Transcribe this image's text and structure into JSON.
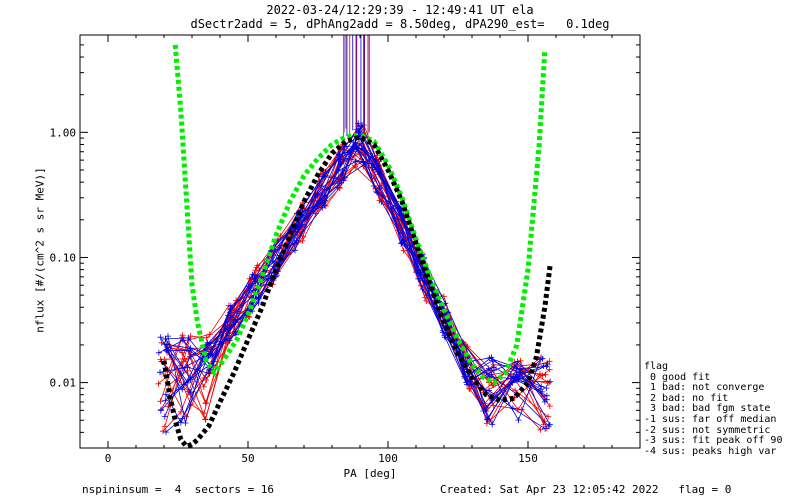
{
  "chart_data": {
    "type": "line",
    "title": "2022-03-24/12:29:39 - 12:49:41 UT ela",
    "subtitle": "dSectr2add = 5, dPhAng2add = 8.50deg, dPA290_est=   0.1deg",
    "xlabel": "PA [deg]",
    "ylabel": "nflux [#/(cm^2 s sr MeV)]",
    "xlim": [
      -10,
      190
    ],
    "ylim": [
      0.003,
      6.0
    ],
    "yscale": "log",
    "xticks": [
      0,
      50,
      100,
      150
    ],
    "yticks": [
      {
        "value": 0.01,
        "label": "0.01"
      },
      {
        "value": 0.1,
        "label": "0.10"
      },
      {
        "value": 1.0,
        "label": "1.00"
      }
    ],
    "series": [
      {
        "color": "#00ee00",
        "style": "thick-dotted",
        "x": [
          24,
          26,
          28,
          30,
          32,
          35,
          38,
          42,
          46,
          50,
          55,
          60,
          65,
          70,
          75,
          80,
          85,
          90,
          95,
          100,
          105,
          110,
          115,
          120,
          125,
          130,
          134,
          138,
          142,
          146,
          150,
          154,
          156
        ],
        "values": [
          5.0,
          1.5,
          0.3,
          0.06,
          0.03,
          0.015,
          0.012,
          0.016,
          0.022,
          0.035,
          0.07,
          0.15,
          0.28,
          0.45,
          0.62,
          0.8,
          0.92,
          0.95,
          0.85,
          0.55,
          0.3,
          0.14,
          0.07,
          0.038,
          0.022,
          0.014,
          0.011,
          0.01,
          0.012,
          0.02,
          0.08,
          0.8,
          4.5
        ]
      },
      {
        "color": "#000000",
        "style": "thick-dotted",
        "x": [
          20,
          22,
          24,
          26,
          28,
          30,
          32,
          36,
          40,
          45,
          50,
          55,
          60,
          65,
          70,
          75,
          80,
          85,
          90,
          95,
          100,
          105,
          110,
          115,
          120,
          125,
          130,
          135,
          140,
          145,
          150,
          153,
          156,
          158
        ],
        "values": [
          0.015,
          0.008,
          0.005,
          0.0035,
          0.0031,
          0.0032,
          0.0035,
          0.0045,
          0.007,
          0.012,
          0.022,
          0.04,
          0.08,
          0.15,
          0.28,
          0.46,
          0.68,
          0.85,
          0.92,
          0.8,
          0.5,
          0.28,
          0.13,
          0.06,
          0.03,
          0.017,
          0.011,
          0.008,
          0.0072,
          0.0075,
          0.01,
          0.016,
          0.04,
          0.09
        ]
      }
    ]
  },
  "legend": {
    "title": "flag",
    "items": [
      " 0 good fit",
      " 1 bad: not converge",
      " 2 bad: no fit",
      " 3 bad: bad fgm state",
      "-1 sus: far off median",
      "-2 sus: not symmetric",
      "-3 sus: fit peak off 90",
      "-4 sus: peaks high var"
    ]
  },
  "footer": {
    "left": "nspininsum =  4  sectors = 16",
    "right": "Created: Sat Apr 23 12:05:42 2022   flag = 0"
  },
  "colors": {
    "red": "#ee0000",
    "blue": "#0000dd",
    "green": "#00ee00",
    "black": "#000000"
  }
}
